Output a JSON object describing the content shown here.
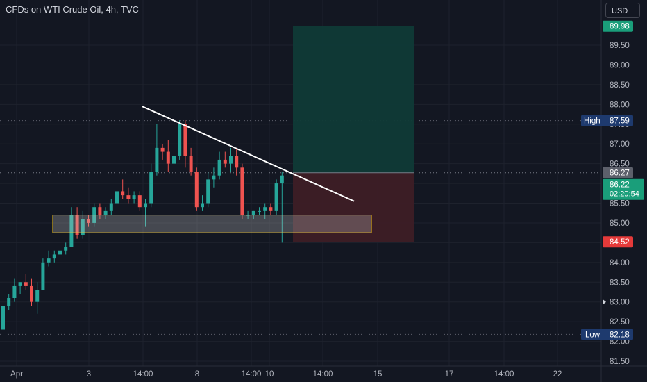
{
  "title": "CFDs on WTI Crude Oil, 4h, TVC",
  "currency": "USD",
  "colors": {
    "background": "#131722",
    "grid": "#1e222d",
    "up": "#26a69a",
    "down": "#ef5350",
    "axis_text": "#b2b5be",
    "trendline": "#ffffff",
    "zone_border": "#f5c518",
    "target_zone": "#0f3a37",
    "stop_zone": "#3d1e26"
  },
  "chart_data": {
    "type": "candlestick",
    "ylim": [
      81.4,
      90.2
    ],
    "y_ticks": [
      "81.50",
      "82.00",
      "82.50",
      "83.00",
      "83.50",
      "84.00",
      "84.50",
      "85.00",
      "85.50",
      "86.00",
      "86.50",
      "87.00",
      "87.50",
      "88.00",
      "88.50",
      "89.00",
      "89.50"
    ],
    "x_ticks": [
      "Apr",
      "3",
      "14:00",
      "8",
      "14:00",
      "10",
      "14:00",
      "15",
      "17",
      "14:00",
      "22"
    ],
    "candles": [
      [
        82.3,
        83.1,
        82.2,
        82.9
      ],
      [
        82.9,
        83.2,
        82.8,
        83.1
      ],
      [
        83.1,
        83.6,
        83.0,
        83.4
      ],
      [
        83.4,
        83.5,
        83.2,
        83.5
      ],
      [
        83.5,
        83.7,
        83.3,
        83.4
      ],
      [
        83.4,
        83.6,
        82.9,
        83.0
      ],
      [
        83.0,
        83.5,
        82.7,
        83.3
      ],
      [
        83.3,
        84.1,
        83.3,
        84.0
      ],
      [
        84.0,
        84.3,
        83.9,
        84.1
      ],
      [
        84.1,
        84.3,
        84.0,
        84.2
      ],
      [
        84.2,
        84.4,
        84.1,
        84.3
      ],
      [
        84.3,
        84.5,
        84.2,
        84.4
      ],
      [
        84.4,
        85.4,
        84.4,
        85.2
      ],
      [
        85.2,
        85.4,
        84.6,
        84.7
      ],
      [
        84.7,
        85.3,
        84.6,
        85.1
      ],
      [
        85.1,
        85.2,
        84.9,
        85.0
      ],
      [
        85.0,
        85.5,
        84.9,
        85.4
      ],
      [
        85.4,
        85.5,
        85.1,
        85.2
      ],
      [
        85.2,
        85.4,
        85.1,
        85.3
      ],
      [
        85.3,
        85.6,
        85.2,
        85.5
      ],
      [
        85.5,
        86.0,
        85.3,
        85.8
      ],
      [
        85.8,
        86.1,
        85.6,
        85.7
      ],
      [
        85.7,
        85.9,
        85.5,
        85.6
      ],
      [
        85.6,
        85.8,
        85.5,
        85.7
      ],
      [
        85.7,
        85.8,
        85.3,
        85.4
      ],
      [
        85.4,
        85.6,
        84.9,
        85.5
      ],
      [
        85.5,
        86.5,
        85.4,
        86.3
      ],
      [
        86.3,
        87.5,
        86.2,
        86.9
      ],
      [
        86.9,
        87.0,
        86.6,
        86.8
      ],
      [
        86.8,
        87.1,
        86.3,
        86.5
      ],
      [
        86.5,
        86.8,
        86.3,
        86.7
      ],
      [
        86.7,
        87.6,
        86.6,
        87.5
      ],
      [
        87.5,
        87.6,
        86.4,
        86.7
      ],
      [
        86.7,
        86.9,
        86.2,
        86.3
      ],
      [
        86.3,
        86.4,
        85.3,
        85.4
      ],
      [
        85.4,
        85.7,
        85.3,
        85.5
      ],
      [
        85.5,
        86.3,
        85.4,
        86.1
      ],
      [
        86.1,
        86.4,
        85.9,
        86.2
      ],
      [
        86.2,
        86.8,
        86.1,
        86.6
      ],
      [
        86.6,
        86.8,
        86.4,
        86.5
      ],
      [
        86.5,
        86.9,
        86.3,
        86.7
      ],
      [
        86.7,
        86.9,
        86.2,
        86.4
      ],
      [
        86.4,
        86.5,
        85.1,
        85.2
      ],
      [
        85.2,
        85.3,
        85.1,
        85.2
      ],
      [
        85.2,
        85.3,
        85.1,
        85.3
      ],
      [
        85.3,
        85.4,
        85.2,
        85.3
      ],
      [
        85.3,
        85.5,
        85.1,
        85.4
      ],
      [
        85.4,
        85.5,
        85.2,
        85.3
      ],
      [
        85.3,
        86.1,
        85.2,
        86.0
      ],
      [
        86.0,
        86.3,
        84.5,
        86.2
      ]
    ],
    "trendline": {
      "start": [
        87.95,
        88.0
      ],
      "end": [
        85.55,
        85.6
      ]
    },
    "support_zone": {
      "top": 85.2,
      "bottom": 84.75
    },
    "entry": 86.27,
    "target": 89.98,
    "stop": 84.52
  },
  "price_labels": {
    "target": "89.98",
    "high_label": "High",
    "high": "87.59",
    "last": "86.27",
    "current": "86.22",
    "countdown": "02:20:54",
    "stop": "84.52",
    "low_label": "Low",
    "low": "82.18"
  }
}
